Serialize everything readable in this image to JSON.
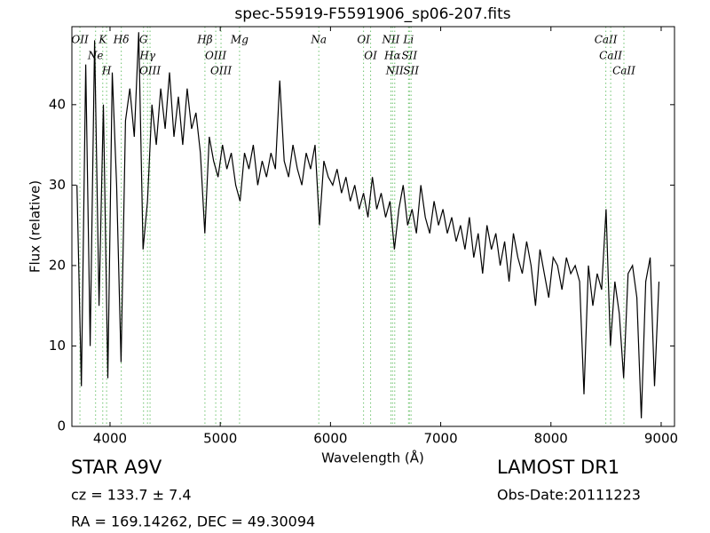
{
  "chart_data": {
    "type": "line",
    "title": "spec-55919-F5591906_sp06-207.fits",
    "x_label": "Wavelength (Å)",
    "y_label": "Flux (relative)",
    "xlim": [
      3654,
      9121
    ],
    "ylim": [
      0,
      49.7
    ],
    "xticks": [
      4000,
      5000,
      6000,
      7000,
      8000,
      9000
    ],
    "yticks": [
      0,
      10,
      20,
      30,
      40
    ],
    "color": "#000000",
    "line_color": "#6fc36f",
    "x": [
      3700,
      3740,
      3780,
      3820,
      3860,
      3900,
      3940,
      3980,
      4020,
      4060,
      4100,
      4140,
      4180,
      4220,
      4260,
      4300,
      4340,
      4380,
      4420,
      4460,
      4500,
      4540,
      4580,
      4620,
      4660,
      4700,
      4740,
      4780,
      4820,
      4860,
      4900,
      4940,
      4980,
      5020,
      5060,
      5100,
      5140,
      5180,
      5220,
      5260,
      5300,
      5340,
      5380,
      5420,
      5460,
      5500,
      5540,
      5580,
      5620,
      5660,
      5700,
      5740,
      5780,
      5820,
      5860,
      5900,
      5940,
      5980,
      6020,
      6060,
      6100,
      6140,
      6180,
      6220,
      6260,
      6300,
      6340,
      6380,
      6420,
      6460,
      6500,
      6540,
      6580,
      6620,
      6660,
      6700,
      6740,
      6780,
      6820,
      6860,
      6900,
      6940,
      6980,
      7020,
      7060,
      7100,
      7140,
      7180,
      7220,
      7260,
      7300,
      7340,
      7380,
      7420,
      7460,
      7500,
      7540,
      7580,
      7620,
      7660,
      7700,
      7740,
      7780,
      7820,
      7860,
      7900,
      7940,
      7980,
      8020,
      8060,
      8100,
      8140,
      8180,
      8220,
      8260,
      8300,
      8340,
      8380,
      8420,
      8460,
      8500,
      8540,
      8580,
      8620,
      8660,
      8700,
      8740,
      8780,
      8820,
      8860,
      8900,
      8940,
      8980
    ],
    "values": [
      30,
      5,
      45,
      10,
      48,
      15,
      40,
      6,
      44,
      30,
      8,
      38,
      42,
      36,
      49,
      22,
      28,
      40,
      35,
      42,
      37,
      44,
      36,
      41,
      35,
      42,
      37,
      39,
      34,
      24,
      36,
      33,
      31,
      35,
      32,
      34,
      30,
      28,
      34,
      32,
      35,
      30,
      33,
      31,
      34,
      32,
      43,
      33,
      31,
      35,
      32,
      30,
      34,
      32,
      35,
      25,
      33,
      31,
      30,
      32,
      29,
      31,
      28,
      30,
      27,
      29,
      26,
      31,
      27,
      29,
      26,
      28,
      22,
      27,
      30,
      25,
      27,
      24,
      30,
      26,
      24,
      28,
      25,
      27,
      24,
      26,
      23,
      25,
      22,
      26,
      21,
      24,
      19,
      25,
      22,
      24,
      20,
      23,
      18,
      24,
      21,
      19,
      23,
      20,
      15,
      22,
      19,
      16,
      21,
      20,
      17,
      21,
      19,
      20,
      18,
      4,
      20,
      15,
      19,
      17,
      27,
      10,
      18,
      14,
      6,
      19,
      20,
      16,
      1,
      18,
      21,
      5,
      18
    ],
    "lines": [
      {
        "wavelength": 3727,
        "label": "OII"
      },
      {
        "wavelength": 3869,
        "label": "Ne"
      },
      {
        "wavelength": 3934,
        "label": "K"
      },
      {
        "wavelength": 3969,
        "label": "H"
      },
      {
        "wavelength": 4102,
        "label": "Hδ"
      },
      {
        "wavelength": 4304,
        "label": "G"
      },
      {
        "wavelength": 4340,
        "label": "Hγ"
      },
      {
        "wavelength": 4363,
        "label": "OIII"
      },
      {
        "wavelength": 4861,
        "label": "Hβ"
      },
      {
        "wavelength": 4959,
        "label": "OIII"
      },
      {
        "wavelength": 5007,
        "label": "OIII"
      },
      {
        "wavelength": 5175,
        "label": "Mg"
      },
      {
        "wavelength": 5894,
        "label": "Na"
      },
      {
        "wavelength": 6300,
        "label": "OI"
      },
      {
        "wavelength": 6364,
        "label": "OI"
      },
      {
        "wavelength": 6548,
        "label": "NII"
      },
      {
        "wavelength": 6563,
        "label": "Hα"
      },
      {
        "wavelength": 6583,
        "label": "NII"
      },
      {
        "wavelength": 6708,
        "label": "Li"
      },
      {
        "wavelength": 6716,
        "label": "SII"
      },
      {
        "wavelength": 6731,
        "label": "SII"
      },
      {
        "wavelength": 8498,
        "label": "CaII"
      },
      {
        "wavelength": 8542,
        "label": "CaII"
      },
      {
        "wavelength": 8662,
        "label": "CaII"
      }
    ]
  },
  "info": {
    "object_class": "STAR   A9V",
    "survey": "LAMOST DR1",
    "redshift": "cz = 133.7  ± 7.4",
    "obs_date": "Obs-Date:20111223",
    "coords": "RA = 169.14262, DEC = 49.30094"
  }
}
